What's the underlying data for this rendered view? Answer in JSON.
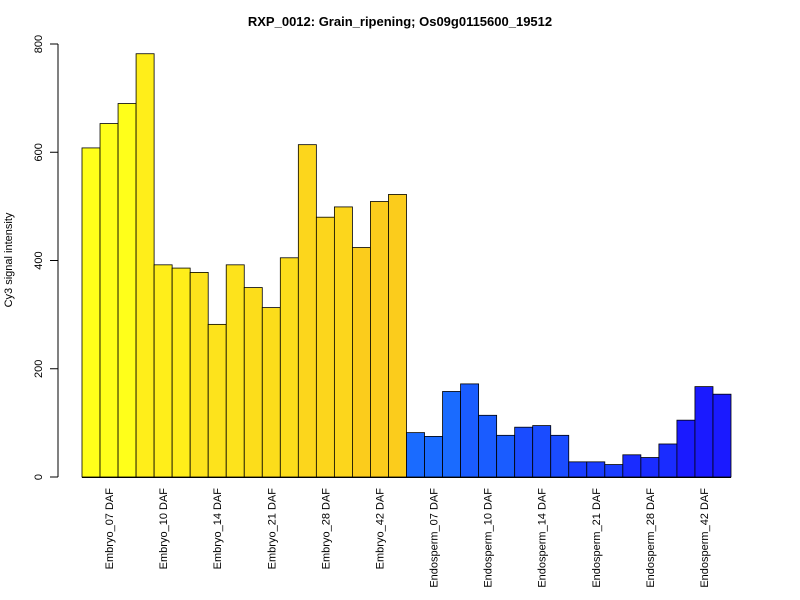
{
  "chart_data": {
    "type": "bar",
    "title": "RXP_0012: Grain_ripening; Os09g0115600_19512",
    "ylabel": "Cy3 signal intensity",
    "xlabel": "",
    "ylim": [
      0,
      800
    ],
    "yticks": [
      0,
      200,
      400,
      600,
      800
    ],
    "grid": false,
    "legend": "none",
    "bars_per_group": 3,
    "groups": [
      {
        "label": "Embryo_07 DAF",
        "values": [
          608,
          653,
          690
        ],
        "color": "#ffff1a"
      },
      {
        "label": "Embryo_10 DAF",
        "values": [
          782,
          392,
          386
        ],
        "color": "#ffee1a"
      },
      {
        "label": "Embryo_14 DAF",
        "values": [
          378,
          282,
          392
        ],
        "color": "#fde31c"
      },
      {
        "label": "Embryo_21 DAF",
        "values": [
          350,
          313,
          405
        ],
        "color": "#fcdd1b"
      },
      {
        "label": "Embryo_28 DAF",
        "values": [
          614,
          480,
          499
        ],
        "color": "#fcd61c"
      },
      {
        "label": "Embryo_42 DAF",
        "values": [
          424,
          509,
          522
        ],
        "color": "#fbcc1c"
      },
      {
        "label": "Endosperm_07 DAF",
        "values": [
          82,
          75,
          158
        ],
        "color": "#1a6bff"
      },
      {
        "label": "Endosperm_10 DAF",
        "values": [
          172,
          114,
          77
        ],
        "color": "#1a5cff"
      },
      {
        "label": "Endosperm_14 DAF",
        "values": [
          92,
          95,
          77
        ],
        "color": "#1a4cff"
      },
      {
        "label": "Endosperm_21 DAF",
        "values": [
          28,
          28,
          23
        ],
        "color": "#1a3dff"
      },
      {
        "label": "Endosperm_28 DAF",
        "values": [
          41,
          36,
          61
        ],
        "color": "#1a2cff"
      },
      {
        "label": "Endosperm_42 DAF",
        "values": [
          105,
          167,
          153
        ],
        "color": "#1a1aff"
      }
    ]
  }
}
